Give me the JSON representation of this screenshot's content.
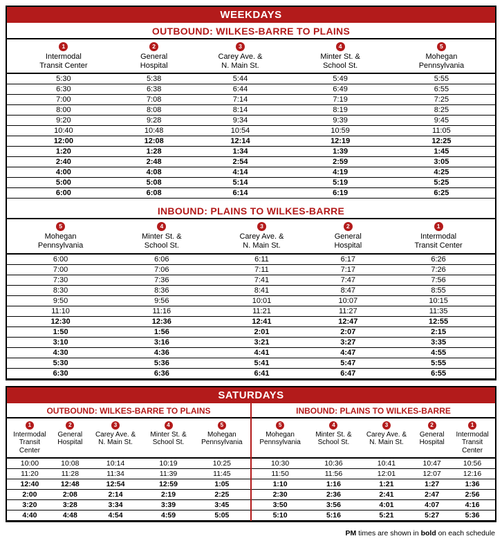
{
  "colors": {
    "brand": "#b31b1b",
    "rule": "#000000",
    "bg": "#ffffff"
  },
  "footnote": {
    "prefix": "PM",
    "text": " times are shown in ",
    "bold": "bold",
    "suffix": " on each schedule"
  },
  "weekdays": {
    "title": "WEEKDAYS",
    "outbound": {
      "title": "OUTBOUND: WILKES-BARRE TO PLAINS",
      "stops": [
        {
          "num": "1",
          "l1": "Intermodal",
          "l2": "Transit Center"
        },
        {
          "num": "2",
          "l1": "General",
          "l2": "Hospital"
        },
        {
          "num": "3",
          "l1": "Carey Ave. &",
          "l2": "N. Main St."
        },
        {
          "num": "4",
          "l1": "Minter St. &",
          "l2": "School St."
        },
        {
          "num": "5",
          "l1": "Mohegan",
          "l2": "Pennsylvania"
        }
      ],
      "rows": [
        {
          "pm": false,
          "t": [
            "5:30",
            "5:38",
            "5:44",
            "5:49",
            "5:55"
          ]
        },
        {
          "pm": false,
          "t": [
            "6:30",
            "6:38",
            "6:44",
            "6:49",
            "6:55"
          ]
        },
        {
          "pm": false,
          "t": [
            "7:00",
            "7:08",
            "7:14",
            "7:19",
            "7:25"
          ]
        },
        {
          "pm": false,
          "t": [
            "8:00",
            "8:08",
            "8:14",
            "8:19",
            "8:25"
          ]
        },
        {
          "pm": false,
          "t": [
            "9:20",
            "9:28",
            "9:34",
            "9:39",
            "9:45"
          ]
        },
        {
          "pm": false,
          "t": [
            "10:40",
            "10:48",
            "10:54",
            "10:59",
            "11:05"
          ]
        },
        {
          "pm": true,
          "t": [
            "12:00",
            "12:08",
            "12:14",
            "12:19",
            "12:25"
          ]
        },
        {
          "pm": true,
          "t": [
            "1:20",
            "1:28",
            "1:34",
            "1:39",
            "1:45"
          ]
        },
        {
          "pm": true,
          "t": [
            "2:40",
            "2:48",
            "2:54",
            "2:59",
            "3:05"
          ]
        },
        {
          "pm": true,
          "t": [
            "4:00",
            "4:08",
            "4:14",
            "4:19",
            "4:25"
          ]
        },
        {
          "pm": true,
          "t": [
            "5:00",
            "5:08",
            "5:14",
            "5:19",
            "5:25"
          ]
        },
        {
          "pm": true,
          "t": [
            "6:00",
            "6:08",
            "6:14",
            "6:19",
            "6:25"
          ]
        }
      ]
    },
    "inbound": {
      "title": "INBOUND: PLAINS TO WILKES-BARRE",
      "stops": [
        {
          "num": "5",
          "l1": "Mohegan",
          "l2": "Pennsylvania"
        },
        {
          "num": "4",
          "l1": "Minter St. &",
          "l2": "School St."
        },
        {
          "num": "3",
          "l1": "Carey Ave. &",
          "l2": "N. Main St."
        },
        {
          "num": "2",
          "l1": "General",
          "l2": "Hospital"
        },
        {
          "num": "1",
          "l1": "Intermodal",
          "l2": "Transit Center"
        }
      ],
      "rows": [
        {
          "pm": false,
          "t": [
            "6:00",
            "6:06",
            "6:11",
            "6:17",
            "6:26"
          ]
        },
        {
          "pm": false,
          "t": [
            "7:00",
            "7:06",
            "7:11",
            "7:17",
            "7:26"
          ]
        },
        {
          "pm": false,
          "t": [
            "7:30",
            "7:36",
            "7:41",
            "7:47",
            "7:56"
          ]
        },
        {
          "pm": false,
          "t": [
            "8:30",
            "8:36",
            "8:41",
            "8:47",
            "8:55"
          ]
        },
        {
          "pm": false,
          "t": [
            "9:50",
            "9:56",
            "10:01",
            "10:07",
            "10:15"
          ]
        },
        {
          "pm": false,
          "t": [
            "11:10",
            "11:16",
            "11:21",
            "11:27",
            "11:35"
          ]
        },
        {
          "pm": true,
          "t": [
            "12:30",
            "12:36",
            "12:41",
            "12:47",
            "12:55"
          ]
        },
        {
          "pm": true,
          "t": [
            "1:50",
            "1:56",
            "2:01",
            "2:07",
            "2:15"
          ]
        },
        {
          "pm": true,
          "t": [
            "3:10",
            "3:16",
            "3:21",
            "3:27",
            "3:35"
          ]
        },
        {
          "pm": true,
          "t": [
            "4:30",
            "4:36",
            "4:41",
            "4:47",
            "4:55"
          ]
        },
        {
          "pm": true,
          "t": [
            "5:30",
            "5:36",
            "5:41",
            "5:47",
            "5:55"
          ]
        },
        {
          "pm": true,
          "t": [
            "6:30",
            "6:36",
            "6:41",
            "6:47",
            "6:55"
          ]
        }
      ]
    }
  },
  "saturdays": {
    "title": "SATURDAYS",
    "outbound": {
      "title": "OUTBOUND: WILKES-BARRE TO PLAINS",
      "stops": [
        {
          "num": "1",
          "l1": "Intermodal",
          "l2": "Transit",
          "l3": "Center"
        },
        {
          "num": "2",
          "l1": "General",
          "l2": "Hospital",
          "l3": ""
        },
        {
          "num": "3",
          "l1": "Carey Ave. &",
          "l2": "N. Main St.",
          "l3": ""
        },
        {
          "num": "4",
          "l1": "Minter St. &",
          "l2": "School St.",
          "l3": ""
        },
        {
          "num": "5",
          "l1": "Mohegan",
          "l2": "Pennsylvania",
          "l3": ""
        }
      ],
      "rows": [
        {
          "pm": false,
          "t": [
            "10:00",
            "10:08",
            "10:14",
            "10:19",
            "10:25"
          ]
        },
        {
          "pm": false,
          "t": [
            "11:20",
            "11:28",
            "11:34",
            "11:39",
            "11:45"
          ]
        },
        {
          "pm": true,
          "t": [
            "12:40",
            "12:48",
            "12:54",
            "12:59",
            "1:05"
          ]
        },
        {
          "pm": true,
          "t": [
            "2:00",
            "2:08",
            "2:14",
            "2:19",
            "2:25"
          ]
        },
        {
          "pm": true,
          "t": [
            "3:20",
            "3:28",
            "3:34",
            "3:39",
            "3:45"
          ]
        },
        {
          "pm": true,
          "t": [
            "4:40",
            "4:48",
            "4:54",
            "4:59",
            "5:05"
          ]
        }
      ]
    },
    "inbound": {
      "title": "INBOUND: PLAINS TO WILKES-BARRE",
      "stops": [
        {
          "num": "5",
          "l1": "Mohegan",
          "l2": "Pennsylvania",
          "l3": ""
        },
        {
          "num": "4",
          "l1": "Minter St. &",
          "l2": "School St.",
          "l3": ""
        },
        {
          "num": "3",
          "l1": "Carey Ave. &",
          "l2": "N. Main St.",
          "l3": ""
        },
        {
          "num": "2",
          "l1": "General",
          "l2": "Hospital",
          "l3": ""
        },
        {
          "num": "1",
          "l1": "Intermodal",
          "l2": "Transit",
          "l3": "Center"
        }
      ],
      "rows": [
        {
          "pm": false,
          "t": [
            "10:30",
            "10:36",
            "10:41",
            "10:47",
            "10:56"
          ]
        },
        {
          "pm": false,
          "t": [
            "11:50",
            "11:56",
            "12:01",
            "12:07",
            "12:16"
          ]
        },
        {
          "pm": true,
          "t": [
            "1:10",
            "1:16",
            "1:21",
            "1:27",
            "1:36"
          ]
        },
        {
          "pm": true,
          "t": [
            "2:30",
            "2:36",
            "2:41",
            "2:47",
            "2:56"
          ]
        },
        {
          "pm": true,
          "t": [
            "3:50",
            "3:56",
            "4:01",
            "4:07",
            "4:16"
          ]
        },
        {
          "pm": true,
          "t": [
            "5:10",
            "5:16",
            "5:21",
            "5:27",
            "5:36"
          ]
        }
      ]
    }
  }
}
